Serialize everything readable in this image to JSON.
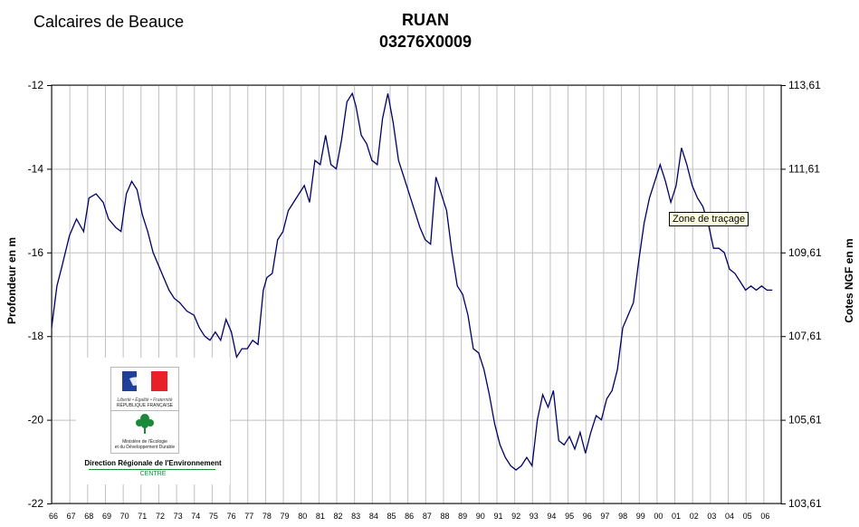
{
  "header": {
    "left_title": "Calcaires de Beauce",
    "title_line1": "RUAN",
    "title_line2": "03276X0009"
  },
  "tooltip": {
    "label": "Zone de traçage"
  },
  "logo": {
    "motto": "Liberté • Égalité • Fraternité",
    "republic": "RÉPUBLIQUE FRANÇAISE",
    "ministry_line1": "Ministère de l'Écologie",
    "ministry_line2": "et du Développement Durable",
    "direction": "Direction Régionale de l'Environnement",
    "region": "CENTRE"
  },
  "colors": {
    "line": "#000066",
    "grid": "#c0c0c0",
    "flag_blue": "#1f3f9a",
    "flag_red": "#e8202a",
    "logo_green": "#1a8a3a"
  },
  "chart_data": {
    "type": "line",
    "xlabel": "",
    "ylabel": "Profondeur en m",
    "ylabel_right": "Cotes NGF en m",
    "xlim": [
      1966,
      2007
    ],
    "ylim": [
      -22,
      -12
    ],
    "yticks": [
      -12,
      -14,
      -16,
      -18,
      -20,
      -22
    ],
    "yticks_right": [
      "113,61",
      "111,61",
      "109,61",
      "107,61",
      "105,61",
      "103,61"
    ],
    "xtick_labels": [
      "66",
      "67",
      "68",
      "69",
      "70",
      "71",
      "72",
      "73",
      "74",
      "75",
      "76",
      "77",
      "78",
      "79",
      "80",
      "81",
      "82",
      "83",
      "84",
      "85",
      "86",
      "87",
      "88",
      "89",
      "90",
      "91",
      "92",
      "93",
      "94",
      "95",
      "96",
      "97",
      "98",
      "99",
      "00",
      "01",
      "02",
      "03",
      "04",
      "05",
      "06"
    ],
    "grid": "vertical per year, horizontal per 2 m",
    "series": [
      {
        "x": [
          1966.0,
          1966.3,
          1966.6,
          1967.0,
          1967.4,
          1967.8,
          1968.1,
          1968.5,
          1968.9,
          1969.2,
          1969.6,
          1969.9,
          1970.2,
          1970.5,
          1970.8,
          1971.1,
          1971.4,
          1971.7,
          1972.0,
          1972.3,
          1972.6,
          1972.9,
          1973.2,
          1973.6,
          1974.0,
          1974.3,
          1974.6,
          1974.9,
          1975.2,
          1975.5,
          1975.8,
          1976.1,
          1976.4,
          1976.7,
          1977.0,
          1977.3,
          1977.6,
          1977.9,
          1978.1,
          1978.4,
          1978.7,
          1979.0,
          1979.3,
          1979.6,
          1979.9,
          1980.2,
          1980.5,
          1980.8,
          1981.1,
          1981.4,
          1981.7,
          1982.0,
          1982.3,
          1982.6,
          1982.9,
          1983.1,
          1983.4,
          1983.7,
          1984.0,
          1984.3,
          1984.6,
          1984.9,
          1985.2,
          1985.5,
          1985.8,
          1986.1,
          1986.4,
          1986.7,
          1987.0,
          1987.3,
          1987.6,
          1987.9,
          1988.2,
          1988.5,
          1988.8,
          1989.1,
          1989.4,
          1989.7,
          1990.0,
          1990.3,
          1990.6,
          1990.9,
          1991.2,
          1991.5,
          1991.8,
          1992.1,
          1992.4,
          1992.7,
          1993.0,
          1993.3,
          1993.6,
          1993.9,
          1994.2,
          1994.5,
          1994.8,
          1995.1,
          1995.4,
          1995.7,
          1996.0,
          1996.3,
          1996.6,
          1996.9,
          1997.2,
          1997.5,
          1997.8,
          1998.1,
          1998.4,
          1998.7,
          1999.0,
          1999.3,
          1999.6,
          1999.9,
          2000.2,
          2000.5,
          2000.8,
          2001.1,
          2001.4,
          2001.7,
          2002.0,
          2002.3,
          2002.6,
          2002.9,
          2003.2,
          2003.5,
          2003.8,
          2004.1,
          2004.4,
          2004.7,
          2005.0,
          2005.3,
          2005.6,
          2005.9,
          2006.2,
          2006.5
        ],
        "y": [
          -17.8,
          -16.8,
          -16.3,
          -15.6,
          -15.2,
          -15.5,
          -14.7,
          -14.6,
          -14.8,
          -15.2,
          -15.4,
          -15.5,
          -14.6,
          -14.3,
          -14.5,
          -15.1,
          -15.5,
          -16.0,
          -16.3,
          -16.6,
          -16.9,
          -17.1,
          -17.2,
          -17.4,
          -17.5,
          -17.8,
          -18.0,
          -18.1,
          -17.9,
          -18.1,
          -17.6,
          -17.9,
          -18.5,
          -18.3,
          -18.3,
          -18.1,
          -18.2,
          -16.9,
          -16.6,
          -16.5,
          -15.7,
          -15.5,
          -15.0,
          -14.8,
          -14.6,
          -14.4,
          -14.8,
          -13.8,
          -13.9,
          -13.2,
          -13.9,
          -14.0,
          -13.3,
          -12.4,
          -12.2,
          -12.5,
          -13.2,
          -13.4,
          -13.8,
          -13.9,
          -12.8,
          -12.2,
          -12.9,
          -13.8,
          -14.2,
          -14.6,
          -15.0,
          -15.4,
          -15.7,
          -15.8,
          -14.2,
          -14.6,
          -15.0,
          -16.0,
          -16.8,
          -17.0,
          -17.5,
          -18.3,
          -18.4,
          -18.8,
          -19.4,
          -20.1,
          -20.6,
          -20.9,
          -21.1,
          -21.2,
          -21.1,
          -20.9,
          -21.1,
          -20.0,
          -19.4,
          -19.7,
          -19.3,
          -20.5,
          -20.6,
          -20.4,
          -20.7,
          -20.3,
          -20.8,
          -20.3,
          -19.9,
          -20.0,
          -19.5,
          -19.3,
          -18.8,
          -17.8,
          -17.5,
          -17.2,
          -16.2,
          -15.3,
          -14.7,
          -14.3,
          -13.9,
          -14.3,
          -14.8,
          -14.4,
          -13.5,
          -13.9,
          -14.4,
          -14.7,
          -14.9,
          -15.3,
          -15.9,
          -15.9,
          -16.0,
          -16.4,
          -16.5,
          -16.7,
          -16.9,
          -16.8,
          -16.9,
          -16.8,
          -16.9,
          -16.9
        ]
      }
    ]
  }
}
